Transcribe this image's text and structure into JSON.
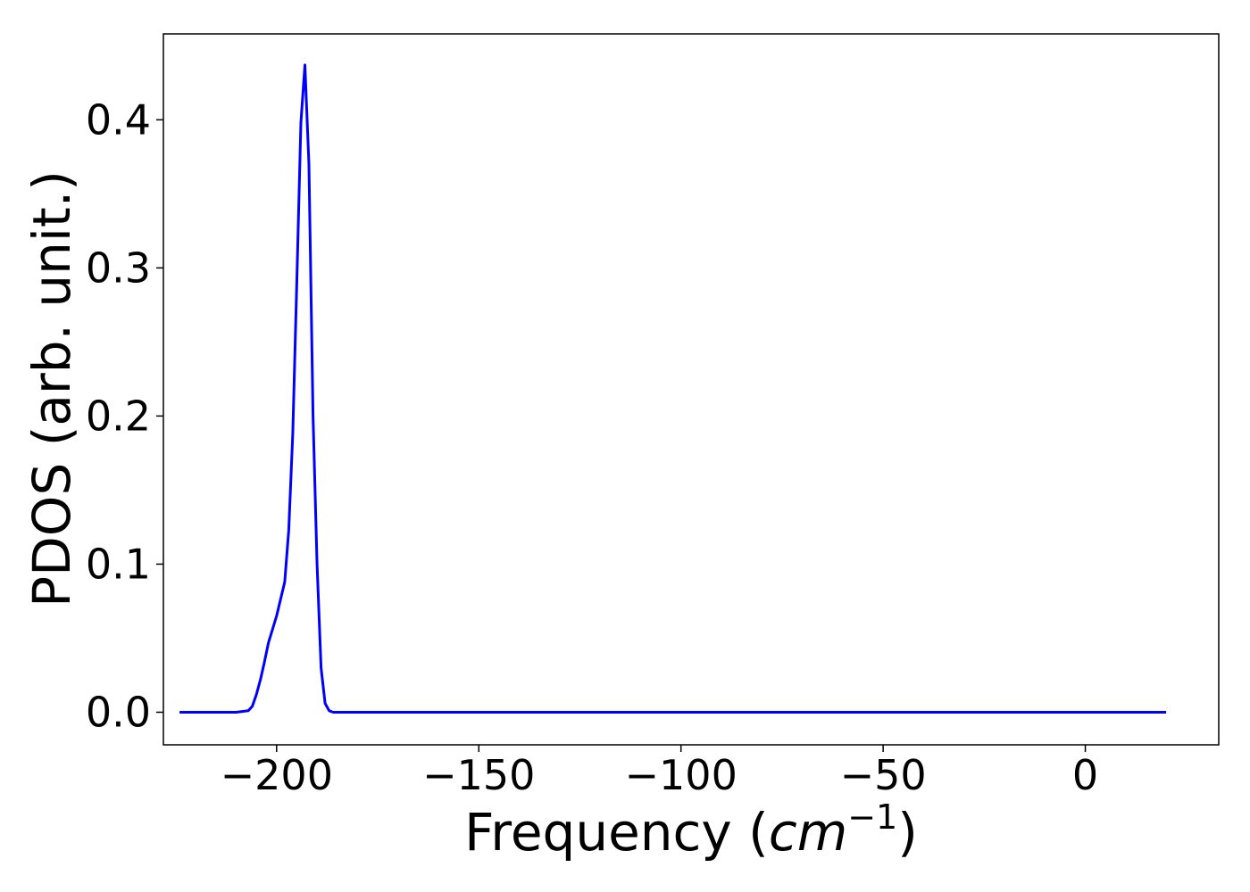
{
  "chart_data": {
    "type": "line",
    "title": "",
    "xlabel": {
      "prefix": "Frequency (",
      "var": "cm",
      "sup": "−1",
      "suffix": ")"
    },
    "ylabel": "PDOS (arb. unit.)",
    "xlim": [
      -228,
      33
    ],
    "ylim": [
      -0.022,
      0.458
    ],
    "xticks": [
      -200,
      -150,
      -100,
      -50,
      0
    ],
    "xtick_labels": [
      "−200",
      "−150",
      "−100",
      "−50",
      "0"
    ],
    "yticks": [
      0.0,
      0.1,
      0.2,
      0.3,
      0.4
    ],
    "ytick_labels": [
      "0.0",
      "0.1",
      "0.2",
      "0.3",
      "0.4"
    ],
    "grid": false,
    "legend": "none",
    "series": [
      {
        "color": "#0000ff",
        "x": [
          -224,
          -210,
          -207,
          -206,
          -205,
          -204,
          -203,
          -202,
          -200,
          -198,
          -197,
          -196,
          -195,
          -194,
          -193,
          -192,
          -191,
          -190,
          -189,
          -188,
          -187,
          -186,
          -185,
          -184,
          -183,
          -182,
          -181,
          -180,
          -170,
          -150,
          -120,
          -100,
          -85,
          -83,
          -82,
          -81,
          -80,
          -79,
          -78,
          -77,
          -76,
          -75,
          -74,
          -73,
          -72,
          -71,
          -70,
          -69,
          -68,
          -67,
          -66,
          -65,
          -64,
          -62,
          -60,
          -58,
          -56,
          -54,
          -52,
          -50,
          -45,
          -40,
          -35,
          -30,
          -25,
          -20,
          -15,
          -10,
          -5,
          0,
          10,
          20
        ],
        "y": [
          0.0,
          0.0,
          0.001,
          0.004,
          0.012,
          0.022,
          0.034,
          0.047,
          0.065,
          0.088,
          0.123,
          0.188,
          0.29,
          0.398,
          0.437,
          0.37,
          0.2,
          0.1,
          0.03,
          0.006,
          0.001,
          0.0,
          0.0,
          0.0,
          0.0,
          0.0,
          0.0,
          0.0,
          0.0,
          0.0,
          0.0,
          0.0,
          0.0,
          0.0,
          0.0,
          0.0,
          0.0,
          0.0,
          0.0,
          0.0,
          0.0,
          0.0,
          0.0,
          0.0,
          0.0,
          0.0,
          0.0,
          0.0,
          0.0,
          0.0,
          0.0,
          0.0,
          0.0,
          0.0,
          0.0,
          0.0,
          0.0,
          0.0,
          0.0,
          0.0,
          0.0,
          0.0,
          0.0,
          0.0,
          0.0,
          0.0,
          0.0,
          0.0,
          0.0,
          0.0,
          0.0,
          0.0
        ]
      }
    ]
  }
}
